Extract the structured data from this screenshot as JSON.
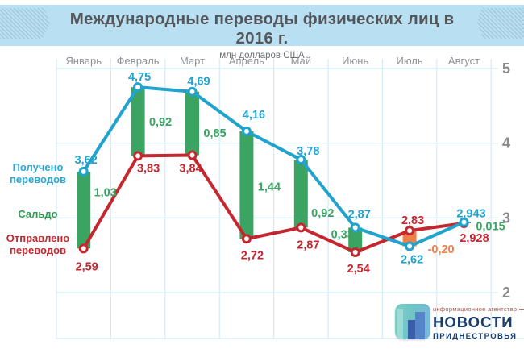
{
  "header": {
    "title": "Международные переводы физических лиц в 2016 г.",
    "subtitle": "млн долларов США"
  },
  "legend": {
    "received": "Получено\nпереводов",
    "saldo": "Сальдо",
    "sent": "Отправлено\nпереводов"
  },
  "logo": {
    "tagline": "информационное агентство",
    "name": "НОВОСТИ",
    "region": "ПРИДНЕСТРОВЬЯ"
  },
  "colors": {
    "received": "#21a3cd",
    "sent": "#c5272f",
    "saldo_positive": "#3ca462",
    "saldo_negative": "#f08048",
    "grid": "#d3eaf7",
    "axis_text": "#87898c",
    "month_text": "#909295",
    "header_bg": "#b9e0f2",
    "title_text": "#54565a"
  },
  "chart_data": {
    "type": "line",
    "subtype": "dual-line-with-difference-bars",
    "title": "Международные переводы физических лиц в 2016 г.",
    "units": "млн долларов США",
    "categories": [
      "Январь",
      "Февраль",
      "Март",
      "Апрель",
      "Май",
      "Июнь",
      "Июль",
      "Август"
    ],
    "series": [
      {
        "name": "Получено переводов",
        "type": "line",
        "color": "#21a3cd",
        "values": [
          3.62,
          4.75,
          4.69,
          4.16,
          3.78,
          2.87,
          2.62,
          2.943
        ],
        "labels": [
          "3,62",
          "4,75",
          "4,69",
          "4,16",
          "3,78",
          "2,87",
          "2,62",
          "2,943"
        ]
      },
      {
        "name": "Отправлено переводов",
        "type": "line",
        "color": "#c5272f",
        "values": [
          2.59,
          3.83,
          3.84,
          2.72,
          2.87,
          2.54,
          2.83,
          2.928
        ],
        "labels": [
          "2,59",
          "3,83",
          "3,84",
          "2,72",
          "2,87",
          "2,54",
          "2,83",
          "2,928"
        ]
      },
      {
        "name": "Сальдо",
        "type": "bar",
        "color_positive": "#3ca462",
        "color_negative": "#f08048",
        "values": [
          1.03,
          0.92,
          0.85,
          1.44,
          0.92,
          0.33,
          -0.2,
          0.015
        ],
        "labels": [
          "1,03",
          "0,92",
          "0,85",
          "1,44",
          "0,92",
          "0,33",
          "-0,20",
          "0,015"
        ]
      }
    ],
    "y_ticks": [
      "5",
      "4",
      "3",
      "2"
    ],
    "ylim": [
      1.38,
      5.13
    ],
    "grid": true,
    "legend_position": "left"
  }
}
